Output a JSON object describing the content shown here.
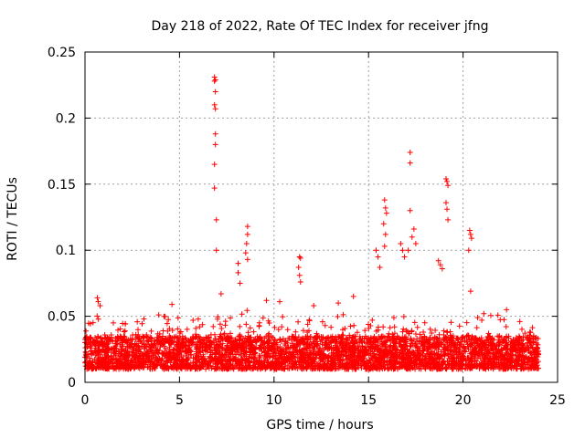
{
  "chart_data": {
    "type": "scatter",
    "title": "Day 218 of 2022, Rate Of TEC Index for receiver jfng",
    "xlabel": "GPS time / hours",
    "ylabel": "ROTI / TECUs",
    "xlim": [
      0,
      25
    ],
    "ylim": [
      0,
      0.25
    ],
    "x_ticks": [
      "0",
      "5",
      "10",
      "15",
      "20",
      "25"
    ],
    "y_ticks": [
      "0",
      "0.05",
      "0.1",
      "0.15",
      "0.2",
      "0.25"
    ],
    "grid": true,
    "marker": "+",
    "color": "#ff0000",
    "series": [
      {
        "name": "ROTI",
        "baseline_band": [
          0.01,
          0.035
        ],
        "x_range": [
          0,
          24
        ],
        "points": [
          [
            6.85,
            0.231
          ],
          [
            6.85,
            0.228
          ],
          [
            6.9,
            0.229
          ],
          [
            6.9,
            0.22
          ],
          [
            6.85,
            0.21
          ],
          [
            6.9,
            0.207
          ],
          [
            6.9,
            0.188
          ],
          [
            6.9,
            0.18
          ],
          [
            6.85,
            0.165
          ],
          [
            6.85,
            0.147
          ],
          [
            6.95,
            0.123
          ],
          [
            6.95,
            0.1
          ],
          [
            8.6,
            0.118
          ],
          [
            8.6,
            0.112
          ],
          [
            8.55,
            0.105
          ],
          [
            8.5,
            0.098
          ],
          [
            8.6,
            0.093
          ],
          [
            8.1,
            0.09
          ],
          [
            8.1,
            0.083
          ],
          [
            8.2,
            0.075
          ],
          [
            11.35,
            0.095
          ],
          [
            11.4,
            0.094
          ],
          [
            11.3,
            0.087
          ],
          [
            11.35,
            0.081
          ],
          [
            11.4,
            0.076
          ],
          [
            15.85,
            0.138
          ],
          [
            15.9,
            0.132
          ],
          [
            15.95,
            0.128
          ],
          [
            15.8,
            0.12
          ],
          [
            15.9,
            0.112
          ],
          [
            15.85,
            0.103
          ],
          [
            15.4,
            0.1
          ],
          [
            15.5,
            0.095
          ],
          [
            15.6,
            0.087
          ],
          [
            16.7,
            0.105
          ],
          [
            16.8,
            0.1
          ],
          [
            16.9,
            0.095
          ],
          [
            17.2,
            0.174
          ],
          [
            17.2,
            0.166
          ],
          [
            17.2,
            0.13
          ],
          [
            17.4,
            0.116
          ],
          [
            17.3,
            0.11
          ],
          [
            17.5,
            0.105
          ],
          [
            17.1,
            0.1
          ],
          [
            18.7,
            0.092
          ],
          [
            18.8,
            0.089
          ],
          [
            18.9,
            0.086
          ],
          [
            19.1,
            0.154
          ],
          [
            19.15,
            0.152
          ],
          [
            19.2,
            0.149
          ],
          [
            19.1,
            0.136
          ],
          [
            19.15,
            0.131
          ],
          [
            19.2,
            0.123
          ],
          [
            20.35,
            0.115
          ],
          [
            20.4,
            0.112
          ],
          [
            20.45,
            0.109
          ],
          [
            20.3,
            0.1
          ],
          [
            20.4,
            0.069
          ],
          [
            0.65,
            0.064
          ],
          [
            0.7,
            0.061
          ],
          [
            0.8,
            0.058
          ],
          [
            1.5,
            0.045
          ],
          [
            3.9,
            0.051
          ],
          [
            4.6,
            0.059
          ],
          [
            7.2,
            0.067
          ],
          [
            9.6,
            0.062
          ],
          [
            10.3,
            0.061
          ],
          [
            12.1,
            0.058
          ],
          [
            13.4,
            0.06
          ],
          [
            14.2,
            0.065
          ],
          [
            21.1,
            0.052
          ],
          [
            22.3,
            0.055
          ],
          [
            23.0,
            0.046
          ]
        ]
      }
    ]
  }
}
